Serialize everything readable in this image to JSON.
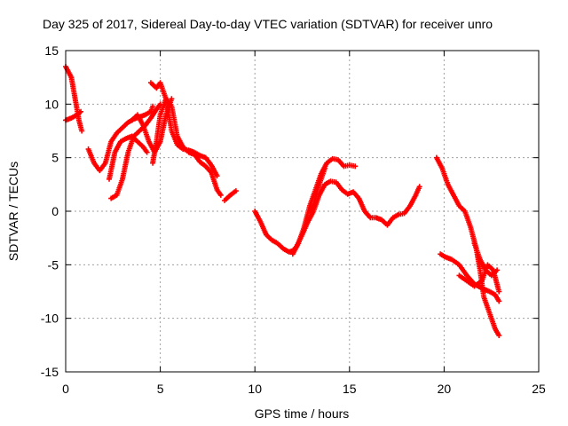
{
  "chart_data": {
    "type": "scatter",
    "title": "Day 325 of 2017, Sidereal Day-to-day VTEC variation (SDTVAR) for receiver unro",
    "xlabel": "GPS time / hours",
    "ylabel": "SDTVAR / TECUs",
    "xlim": [
      0,
      25
    ],
    "ylim": [
      -15,
      15
    ],
    "xticks": [
      0,
      5,
      10,
      15,
      20,
      25
    ],
    "yticks": [
      -15,
      -10,
      -5,
      0,
      5,
      10,
      15
    ],
    "grid": true,
    "marker": "+",
    "color": "#ff0000",
    "series": [
      {
        "name": "a1",
        "x": [
          0.0,
          0.3,
          0.5,
          0.7,
          0.85
        ],
        "y": [
          13.5,
          12.5,
          10.5,
          8.5,
          7.5
        ]
      },
      {
        "name": "a2",
        "x": [
          0.0,
          0.3,
          0.6,
          0.8
        ],
        "y": [
          8.5,
          8.7,
          9.0,
          9.3
        ]
      },
      {
        "name": "b1",
        "x": [
          1.2,
          1.5,
          1.8,
          2.1,
          2.4,
          2.7,
          3.0,
          3.3,
          3.6,
          3.9,
          4.2,
          4.5,
          4.6
        ],
        "y": [
          5.8,
          4.5,
          3.8,
          4.5,
          6.5,
          7.3,
          7.8,
          8.3,
          8.6,
          8.8,
          9.0,
          9.3,
          9.8
        ]
      },
      {
        "name": "b2",
        "x": [
          2.4,
          2.7,
          3.0,
          3.3,
          3.6,
          3.9,
          4.2,
          4.5,
          4.8,
          5.0
        ],
        "y": [
          1.2,
          1.5,
          3.0,
          5.5,
          7.0,
          7.5,
          8.0,
          8.7,
          9.5,
          10.0
        ]
      },
      {
        "name": "b3",
        "x": [
          2.3,
          2.6,
          2.9,
          3.2,
          3.5,
          3.8,
          4.1,
          4.3
        ],
        "y": [
          3.0,
          5.5,
          6.5,
          6.8,
          7.0,
          6.5,
          6.0,
          5.5
        ]
      },
      {
        "name": "b4",
        "x": [
          3.5,
          3.8,
          4.1,
          4.4,
          4.7,
          5.0,
          5.3,
          5.6
        ],
        "y": [
          8.5,
          9.0,
          8.0,
          6.5,
          5.5,
          6.5,
          9.0,
          10.5
        ]
      },
      {
        "name": "b5",
        "x": [
          4.5,
          4.8,
          5.0,
          5.3,
          5.6,
          5.9,
          6.2,
          6.5,
          6.8,
          7.1,
          7.4,
          7.7,
          8.0
        ],
        "y": [
          12.0,
          11.5,
          12.0,
          10.5,
          7.5,
          6.2,
          5.8,
          5.7,
          5.5,
          5.2,
          5.0,
          4.3,
          3.3
        ]
      },
      {
        "name": "b6",
        "x": [
          4.6,
          4.8,
          5.0,
          5.3,
          5.6,
          5.9,
          6.2,
          6.5,
          6.8,
          7.1,
          7.4,
          7.7,
          8.0,
          8.2
        ],
        "y": [
          4.5,
          6.5,
          9.0,
          10.5,
          9.8,
          7.0,
          6.0,
          5.5,
          5.3,
          4.6,
          4.2,
          3.6,
          2.0,
          1.5
        ]
      },
      {
        "name": "c1",
        "x": [
          8.4,
          8.7,
          9.0
        ],
        "y": [
          1.0,
          1.5,
          1.9
        ]
      },
      {
        "name": "d1",
        "x": [
          10.0,
          10.3,
          10.6,
          10.9,
          11.2,
          11.5,
          11.8,
          12.0,
          12.2,
          12.5,
          12.8,
          13.1,
          13.4,
          13.7,
          14.0,
          14.3,
          14.6,
          14.9,
          15.2,
          15.5,
          15.8,
          16.1,
          16.4,
          16.7,
          17.0,
          17.3,
          17.6,
          17.9,
          18.2,
          18.5,
          18.7
        ],
        "y": [
          0.0,
          -1.0,
          -2.2,
          -2.7,
          -3.0,
          -3.5,
          -3.8,
          -3.7,
          -3.3,
          -2.2,
          -1.0,
          0.0,
          1.5,
          2.5,
          2.8,
          2.7,
          2.0,
          1.6,
          1.8,
          1.2,
          0.0,
          -0.6,
          -0.6,
          -0.8,
          -1.3,
          -0.6,
          -0.3,
          -0.2,
          0.5,
          1.5,
          2.3
        ]
      },
      {
        "name": "d2",
        "x": [
          12.0,
          12.3,
          12.6,
          12.9,
          13.2,
          13.5,
          13.8,
          14.1,
          14.4,
          14.7,
          15.0,
          15.3
        ],
        "y": [
          -4.0,
          -3.0,
          -1.5,
          0.5,
          2.0,
          3.5,
          4.5,
          4.9,
          4.8,
          4.2,
          4.3,
          4.2
        ]
      },
      {
        "name": "d3",
        "x": [
          12.9,
          13.1,
          13.3,
          13.5,
          13.7
        ],
        "y": [
          0.0,
          0.5,
          2.0,
          3.0,
          4.0
        ]
      },
      {
        "name": "e1",
        "x": [
          19.6,
          19.9,
          20.2,
          20.5,
          20.8,
          21.1,
          21.4,
          21.7,
          21.9,
          22.1,
          22.4,
          22.7,
          22.9
        ],
        "y": [
          5.0,
          4.0,
          2.5,
          1.5,
          0.5,
          0.0,
          -1.5,
          -3.5,
          -5.5,
          -8.0,
          -9.5,
          -11.0,
          -11.6
        ]
      },
      {
        "name": "e2",
        "x": [
          19.8,
          20.1,
          20.4,
          20.8,
          21.2,
          21.6,
          22.0,
          22.4,
          22.7,
          22.9
        ],
        "y": [
          -4.0,
          -4.3,
          -4.5,
          -5.0,
          -6.0,
          -6.8,
          -7.2,
          -7.5,
          -7.8,
          -8.4
        ]
      },
      {
        "name": "e3",
        "x": [
          20.8,
          21.2,
          21.6,
          22.0,
          22.3,
          22.6,
          22.9
        ],
        "y": [
          -6.0,
          -6.5,
          -7.0,
          -6.5,
          -5.0,
          -5.5,
          -7.5
        ]
      },
      {
        "name": "e4",
        "x": [
          21.6,
          21.9,
          22.2,
          22.5,
          22.8
        ],
        "y": [
          -3.0,
          -4.5,
          -5.5,
          -6.0,
          -5.5
        ]
      }
    ]
  }
}
